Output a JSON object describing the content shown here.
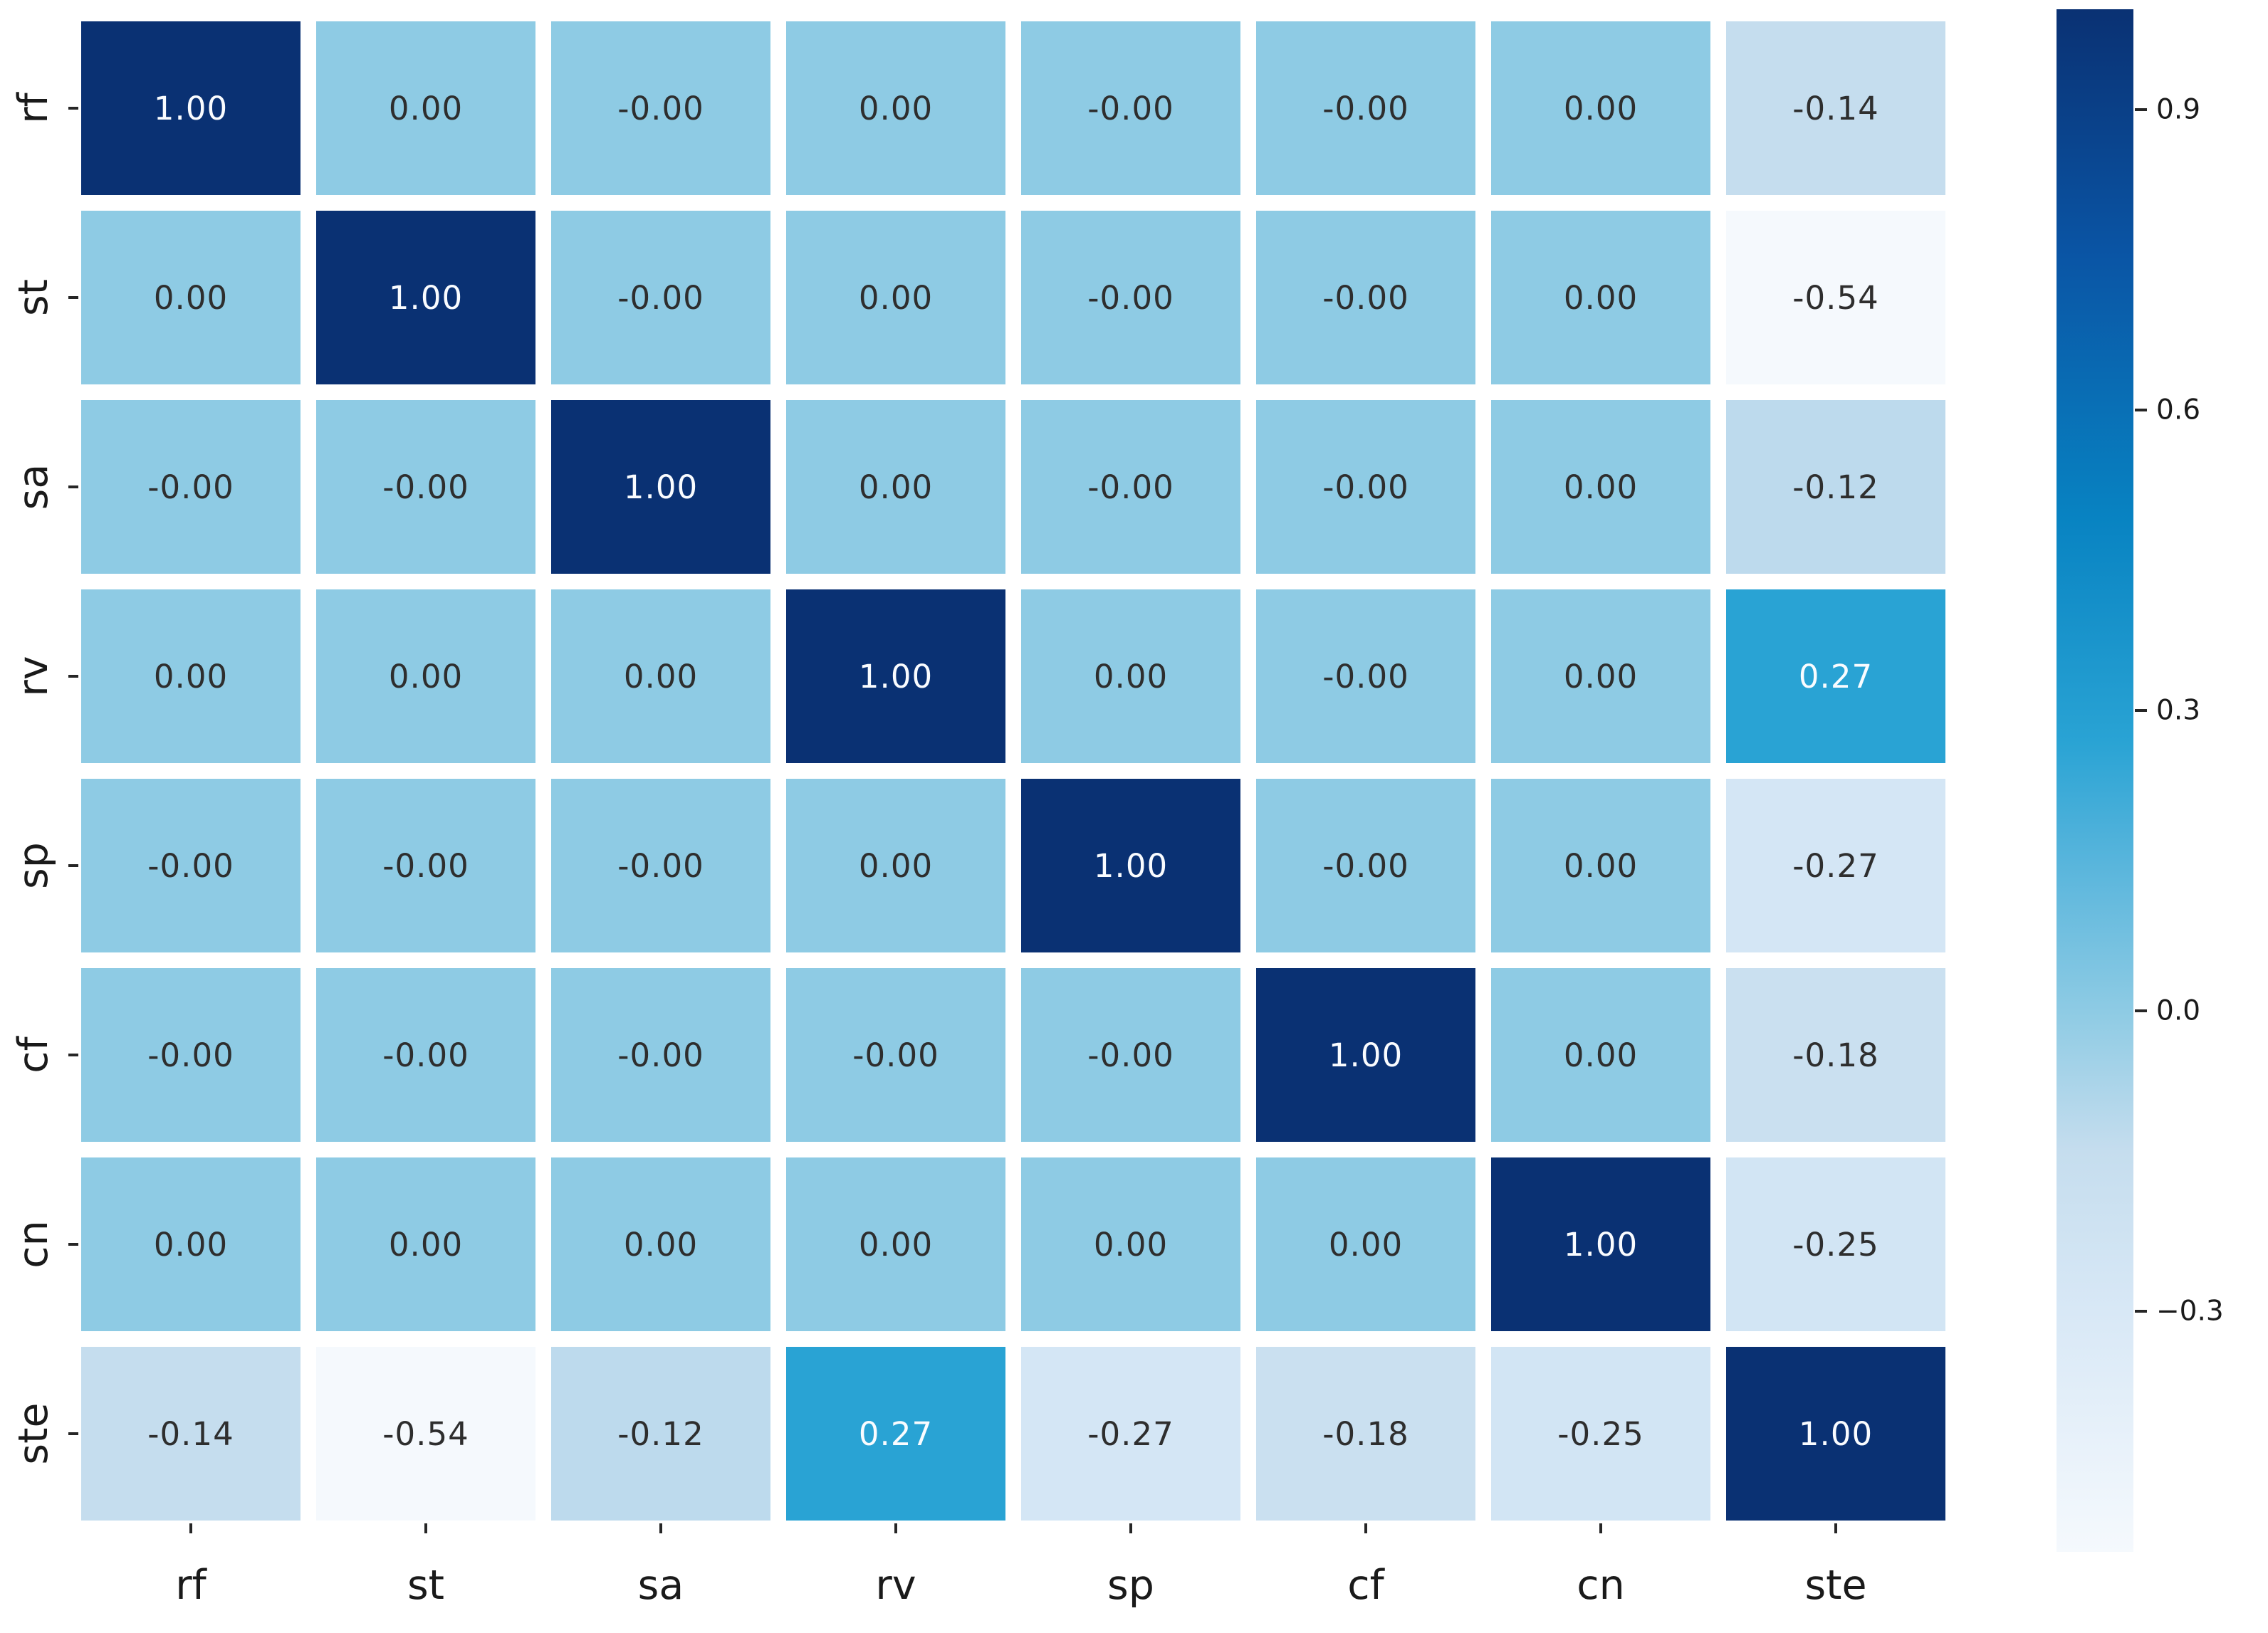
{
  "figure": {
    "background": "#ffffff",
    "tick_color": "#262626",
    "axis_label_color": "#1a1a1a"
  },
  "chart_data": {
    "type": "heatmap",
    "title": "",
    "xlabel": "",
    "ylabel": "",
    "x_categories": [
      "rf",
      "st",
      "sa",
      "rv",
      "sp",
      "cf",
      "cn",
      "ste"
    ],
    "y_categories": [
      "rf",
      "st",
      "sa",
      "rv",
      "sp",
      "cf",
      "cn",
      "ste"
    ],
    "matrix": [
      [
        1.0,
        0.0,
        0.0,
        0.0,
        0.0,
        0.0,
        0.0,
        -0.14
      ],
      [
        0.0,
        1.0,
        0.0,
        0.0,
        0.0,
        0.0,
        0.0,
        -0.54
      ],
      [
        0.0,
        0.0,
        1.0,
        0.0,
        0.0,
        0.0,
        0.0,
        -0.12
      ],
      [
        0.0,
        0.0,
        0.0,
        1.0,
        0.0,
        0.0,
        0.0,
        0.27
      ],
      [
        0.0,
        0.0,
        0.0,
        0.0,
        1.0,
        0.0,
        0.0,
        -0.27
      ],
      [
        0.0,
        0.0,
        0.0,
        0.0,
        0.0,
        1.0,
        0.0,
        -0.18
      ],
      [
        0.0,
        0.0,
        0.0,
        0.0,
        0.0,
        0.0,
        1.0,
        -0.25
      ],
      [
        -0.14,
        -0.54,
        -0.12,
        0.27,
        -0.27,
        -0.18,
        -0.25,
        1.0
      ]
    ],
    "annotations": [
      [
        "1.00",
        "0.00",
        "-0.00",
        "0.00",
        "-0.00",
        "-0.00",
        "0.00",
        "-0.14"
      ],
      [
        "0.00",
        "1.00",
        "-0.00",
        "0.00",
        "-0.00",
        "-0.00",
        "0.00",
        "-0.54"
      ],
      [
        "-0.00",
        "-0.00",
        "1.00",
        "0.00",
        "-0.00",
        "-0.00",
        "0.00",
        "-0.12"
      ],
      [
        "0.00",
        "0.00",
        "0.00",
        "1.00",
        "0.00",
        "-0.00",
        "0.00",
        "0.27"
      ],
      [
        "-0.00",
        "-0.00",
        "-0.00",
        "0.00",
        "1.00",
        "-0.00",
        "0.00",
        "-0.27"
      ],
      [
        "-0.00",
        "-0.00",
        "-0.00",
        "-0.00",
        "-0.00",
        "1.00",
        "0.00",
        "-0.18"
      ],
      [
        "0.00",
        "0.00",
        "0.00",
        "0.00",
        "0.00",
        "0.00",
        "1.00",
        "-0.25"
      ],
      [
        "-0.14",
        "-0.54",
        "-0.12",
        "0.27",
        "-0.27",
        "-0.18",
        "-0.25",
        "1.00"
      ]
    ],
    "vmin": -0.54,
    "vmax": 1.0,
    "colormap_stops": [
      {
        "pos": 0.0,
        "color": "#f5f9fd"
      },
      {
        "pos": 0.156,
        "color": "#d8e8f6"
      },
      {
        "pos": 0.26,
        "color": "#c5ddee"
      },
      {
        "pos": 0.35,
        "color": "#8ecbe4"
      },
      {
        "pos": 0.447,
        "color": "#58b5dc"
      },
      {
        "pos": 0.526,
        "color": "#29a3d4"
      },
      {
        "pos": 0.67,
        "color": "#0883c2"
      },
      {
        "pos": 0.84,
        "color": "#0a55a5"
      },
      {
        "pos": 1.0,
        "color": "#0a3173"
      }
    ],
    "colorbar_ticks": [
      {
        "value": 0.9,
        "label": "0.9"
      },
      {
        "value": 0.6,
        "label": "0.6"
      },
      {
        "value": 0.3,
        "label": "0.3"
      },
      {
        "value": 0.0,
        "label": "0.0"
      },
      {
        "value": -0.3,
        "label": "−0.3"
      }
    ],
    "legend_position": "right-colorbar",
    "grid_on": false,
    "annotation_text_dark": "#2e2e2e",
    "annotation_text_light": "#fafcff"
  }
}
